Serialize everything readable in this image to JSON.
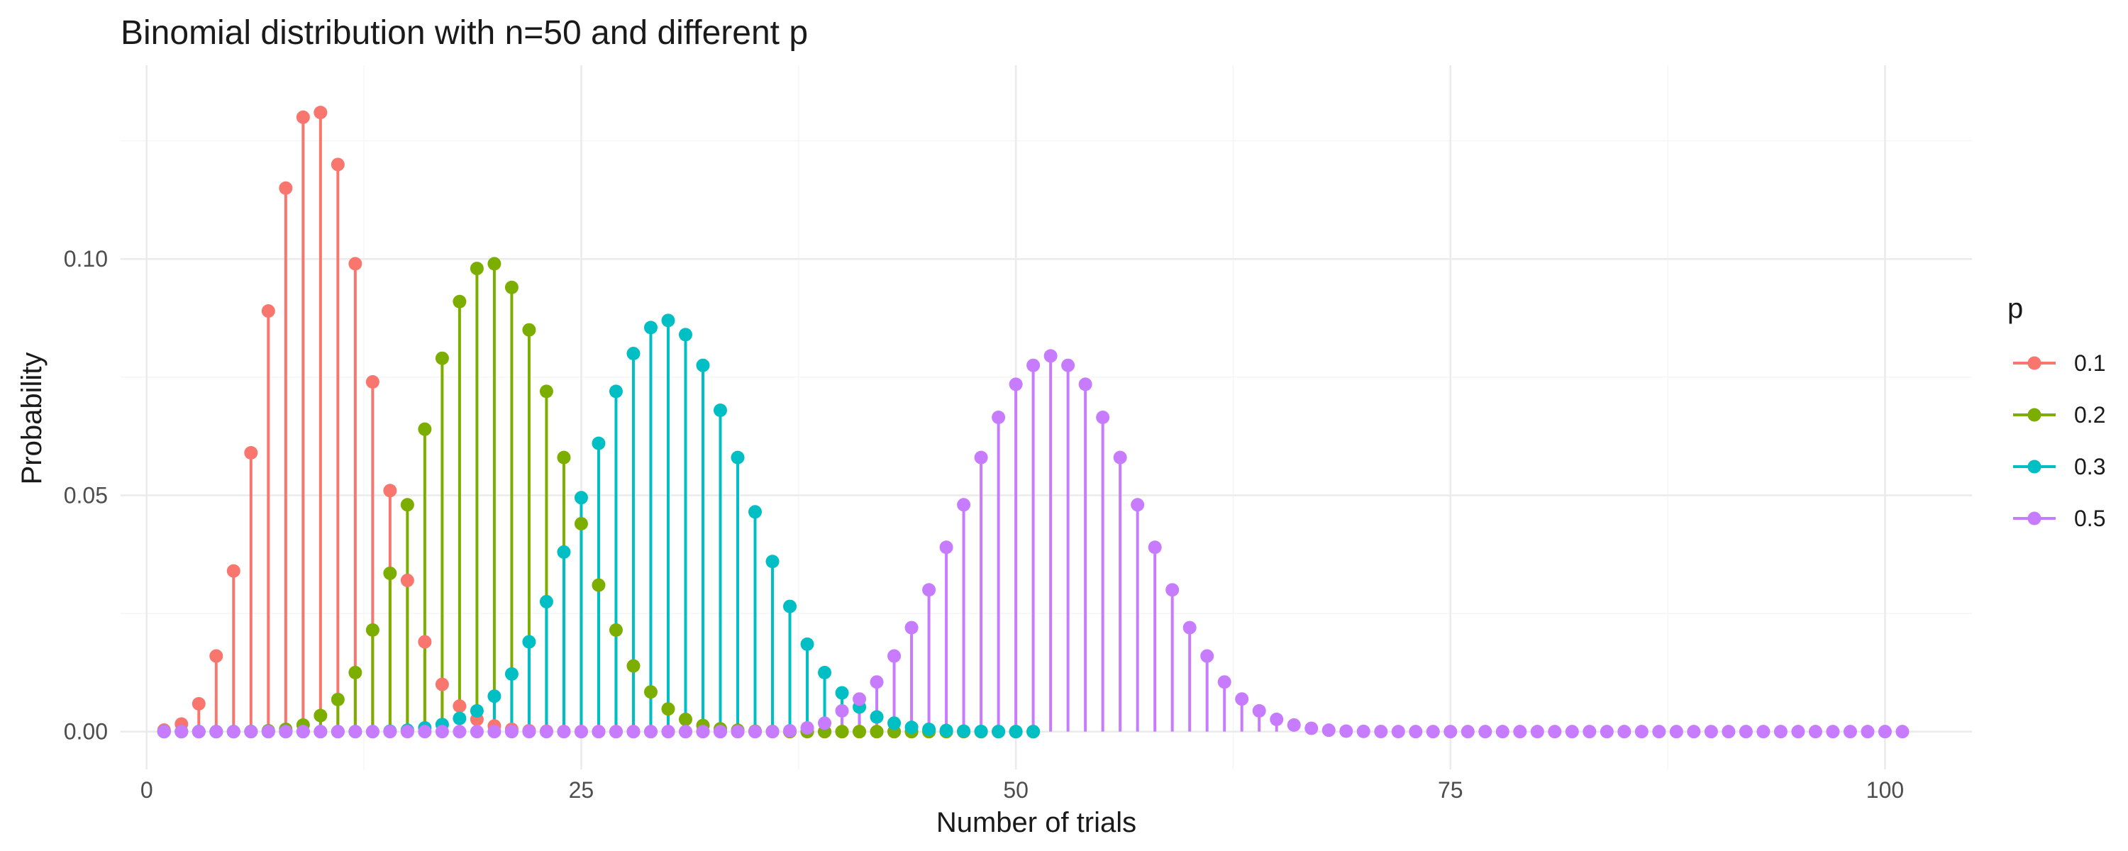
{
  "chart_data": {
    "type": "scatter",
    "subtype": "lollipop",
    "title": "Binomial distribution with n=50 and different p",
    "xlabel": "Number of trials",
    "ylabel": "Probability",
    "xlim": [
      -1.5,
      105
    ],
    "ylim": [
      -0.008,
      0.141
    ],
    "x_ticks": [
      0,
      25,
      50,
      75,
      100
    ],
    "x_tick_labels": [
      "0",
      "25",
      "50",
      "75",
      "100"
    ],
    "y_ticks": [
      0.0,
      0.05,
      0.1
    ],
    "y_tick_labels": [
      "0.00",
      "0.05",
      "0.10"
    ],
    "grid": true,
    "legend": {
      "title": "p",
      "position": "right"
    },
    "n": 50,
    "x_start": 1,
    "series": [
      {
        "name": "0.1",
        "color": "#F8766D",
        "values": [
          0.00032,
          0.0016,
          0.0059,
          0.016,
          0.034,
          0.059,
          0.089,
          0.115,
          0.13,
          0.131,
          0.12,
          0.099,
          0.074,
          0.051,
          0.032,
          0.019,
          0.01,
          0.0054,
          0.0026,
          0.0012,
          0.0005,
          0.0002,
          8e-05,
          3e-05,
          1e-05,
          0,
          0,
          0,
          0,
          0,
          0,
          0,
          0,
          0,
          0,
          0,
          0,
          0,
          0,
          0,
          0,
          0,
          0,
          0,
          0,
          0,
          0,
          0,
          0,
          0,
          0
        ]
      },
      {
        "name": "0.2",
        "color": "#7CAE00",
        "values": [
          0,
          0,
          0,
          0,
          0,
          4e-05,
          0.0002,
          0.0005,
          0.0014,
          0.0034,
          0.0068,
          0.0125,
          0.0215,
          0.0335,
          0.048,
          0.064,
          0.079,
          0.091,
          0.098,
          0.099,
          0.094,
          0.085,
          0.072,
          0.058,
          0.044,
          0.031,
          0.0215,
          0.0139,
          0.0084,
          0.0048,
          0.0026,
          0.0013,
          0.0006,
          0.0003,
          0.0001,
          5e-05,
          2e-05,
          1e-05,
          0,
          0,
          0,
          0,
          0,
          0,
          0,
          0,
          0,
          0,
          0,
          0,
          0
        ]
      },
      {
        "name": "0.3",
        "color": "#00BFC4",
        "values": [
          0,
          0,
          0,
          0,
          0,
          0,
          0,
          0,
          0,
          0,
          0,
          0,
          0,
          0.0001,
          0.0003,
          0.0008,
          0.0015,
          0.0028,
          0.0044,
          0.0075,
          0.0122,
          0.019,
          0.0275,
          0.038,
          0.0495,
          0.061,
          0.072,
          0.08,
          0.0855,
          0.087,
          0.084,
          0.0775,
          0.068,
          0.058,
          0.0465,
          0.036,
          0.0265,
          0.0185,
          0.0125,
          0.0082,
          0.0052,
          0.0031,
          0.0018,
          0.0009,
          0.0005,
          0.00025,
          0.0001,
          5e-05,
          2e-05,
          1e-05,
          0
        ]
      },
      {
        "name": "0.5",
        "color": "#C77CFF",
        "values": [
          0,
          0,
          0,
          0,
          0,
          0,
          0,
          0,
          0,
          0,
          0,
          0,
          0,
          0,
          0,
          0,
          0,
          0,
          0,
          0,
          0,
          0,
          0,
          0,
          0,
          0,
          0,
          0,
          0,
          0,
          0,
          0,
          0,
          0,
          0,
          0,
          0.0002,
          0.0008,
          0.0018,
          0.0044,
          0.0069,
          0.0105,
          0.016,
          0.022,
          0.03,
          0.039,
          0.048,
          0.058,
          0.0665,
          0.0735,
          0.0775,
          0.0795,
          0.0775,
          0.0735,
          0.0665,
          0.058,
          0.048,
          0.039,
          0.03,
          0.022,
          0.016,
          0.0105,
          0.0069,
          0.0044,
          0.0026,
          0.0014,
          0.0007,
          0.0003,
          0.0001,
          5e-05,
          2e-05,
          1e-05,
          0,
          0,
          0,
          0,
          0,
          0,
          0,
          0,
          0,
          0,
          0,
          0,
          0,
          0,
          0,
          0,
          0,
          0,
          0,
          0,
          0,
          0,
          0,
          0,
          0,
          0,
          0,
          0,
          0
        ]
      }
    ]
  }
}
